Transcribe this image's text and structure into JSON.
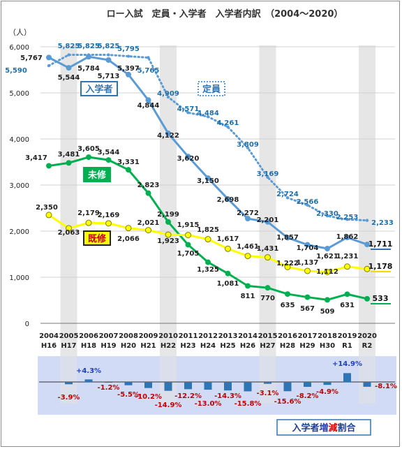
{
  "chart_data": {
    "type": "line",
    "title": "ロー入試　定員・入学者　入学者内訳　（2004～2020）",
    "ylabel": "（人）",
    "ylim": [
      0,
      6000
    ],
    "yticks": [
      "0",
      "1,000",
      "2,000",
      "3,000",
      "4,000",
      "5,000",
      "6,000"
    ],
    "grid": true,
    "categories": [
      "2004",
      "2005",
      "2006",
      "2007",
      "2008",
      "2009",
      "2010",
      "2011",
      "2012",
      "2013",
      "2014",
      "2015",
      "2016",
      "2017",
      "2018",
      "2019",
      "2020"
    ],
    "categories_era": [
      "H16",
      "H17",
      "H18",
      "H19",
      "H20",
      "H21",
      "H22",
      "H23",
      "H24",
      "H25",
      "H26",
      "H27",
      "H28",
      "H29",
      "H30",
      "R1",
      "R2"
    ],
    "highlight_years": [
      "2005",
      "2010",
      "2015",
      "2020"
    ],
    "series": [
      {
        "name": "定員",
        "style": "dotted",
        "color": "#5b9bd5",
        "label_color": "#1f6fa8",
        "values": [
          5590,
          5825,
          5825,
          5825,
          5795,
          5765,
          4909,
          4571,
          4484,
          4261,
          3809,
          3169,
          2724,
          2566,
          2330,
          2253,
          2233
        ],
        "labels": [
          "5,590",
          "5,825",
          "5,825",
          "5,825",
          "5,795",
          "5,765",
          "4,909",
          "4,571",
          "4,484",
          "4,261",
          "3,809",
          "3,169",
          "2,724",
          "2,566",
          "2,330",
          "2,253",
          "2,233"
        ]
      },
      {
        "name": "入学者",
        "style": "solid",
        "color": "#5b9bd5",
        "label_color": "#222222",
        "values": [
          5767,
          5544,
          5784,
          5713,
          5397,
          4844,
          4122,
          3620,
          3150,
          2698,
          2272,
          2201,
          1857,
          1704,
          1621,
          1862,
          1711
        ],
        "labels": [
          "5,767",
          "5,544",
          "5,784",
          "5,713",
          "5,397",
          "4,844",
          "4,122",
          "3,620",
          "3,150",
          "2,698",
          "2,272",
          "2,201",
          "1,857",
          "1,704",
          "1,621",
          "1,862",
          "1,711"
        ]
      },
      {
        "name": "未修",
        "style": "solid",
        "color": "#00b050",
        "label_color": "#222222",
        "values": [
          3417,
          3481,
          3605,
          3544,
          3331,
          2823,
          2199,
          1705,
          1325,
          1081,
          811,
          770,
          635,
          567,
          509,
          631,
          533
        ],
        "labels": [
          "3,417",
          "3,481",
          "3,605",
          "3,544",
          "3,331",
          "2,823",
          "2,199",
          "1,705",
          "1,325",
          "1,081",
          "811",
          "770",
          "635",
          "567",
          "509",
          "631",
          "533"
        ]
      },
      {
        "name": "既修",
        "style": "solid",
        "color": "#ffff00",
        "label_color": "#222222",
        "values": [
          2350,
          2063,
          2179,
          2169,
          2066,
          2021,
          1923,
          1915,
          1825,
          1617,
          1461,
          1431,
          1222,
          1137,
          1112,
          1231,
          1178
        ],
        "labels": [
          "2,350",
          "2,063",
          "2,179",
          "2,169",
          "2,066",
          "2,021",
          "1,923",
          "1,915",
          "1,825",
          "1,617",
          "1,461",
          "1,431",
          "1,222",
          "1,137",
          "1,112",
          "1,231",
          "1,178"
        ]
      }
    ],
    "legend_labels": {
      "capacity": "定員",
      "entrants": "入学者",
      "non_law": "未修",
      "law": "既修"
    },
    "end_labels": {
      "entrants": "1,711",
      "law": "1,178",
      "non_law": "533"
    },
    "change_panel": {
      "title": "入学者増減割合",
      "title_parts": [
        "入学者",
        "増",
        "減",
        "割合"
      ],
      "values": [
        null,
        -3.9,
        4.3,
        -1.2,
        -5.5,
        -10.2,
        -14.9,
        -12.2,
        -13.0,
        -14.3,
        -15.8,
        -3.1,
        -15.6,
        -8.2,
        -4.9,
        14.9,
        -8.1
      ],
      "labels": [
        "",
        "-3.9%",
        "+4.3%",
        "-1.2%",
        "-5.5%",
        "-10.2%",
        "-14.9%",
        "-12.2%",
        "-13.0%",
        "-14.3%",
        "-15.8%",
        "-3.1%",
        "-15.6%",
        "-8.2%",
        "-4.9%",
        "+14.9%",
        "-8.1%"
      ]
    }
  }
}
